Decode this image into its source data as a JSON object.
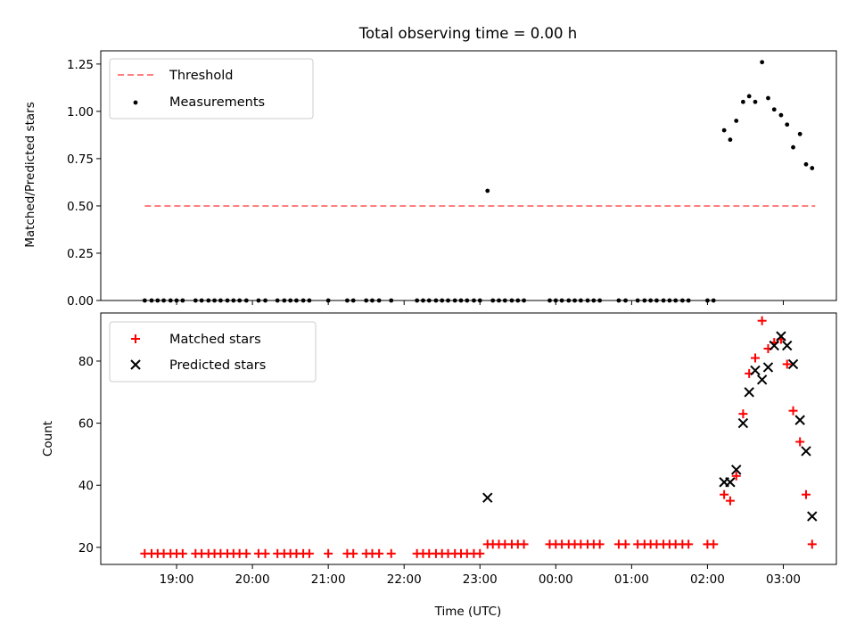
{
  "chart_data": [
    {
      "type": "scatter",
      "title": "Total observing time = 0.00 h",
      "ylabel": "Matched/Predicted stars",
      "xlabel": "",
      "ylim": [
        0,
        1.32
      ],
      "yticks": [
        "0.00",
        "0.25",
        "0.50",
        "0.75",
        "1.00",
        "1.25"
      ],
      "legend": "upper-left",
      "grid": false,
      "series": [
        {
          "name": "Threshold",
          "kind": "line",
          "style": "dashed",
          "color": "#ff7f7f",
          "x": [
            18.58,
            23.1,
            27.42
          ],
          "y": [
            0.5,
            0.5,
            0.5
          ]
        },
        {
          "name": "Measurements",
          "kind": "scatter",
          "marker": "dot",
          "color": "#000000",
          "x": [
            18.58,
            18.67,
            18.75,
            18.83,
            18.92,
            19.0,
            19.08,
            19.25,
            19.33,
            19.42,
            19.5,
            19.58,
            19.67,
            19.75,
            19.83,
            19.92,
            20.08,
            20.17,
            20.33,
            20.42,
            20.5,
            20.58,
            20.67,
            20.75,
            21.0,
            21.25,
            21.33,
            21.5,
            21.58,
            21.67,
            21.83,
            22.17,
            22.25,
            22.33,
            22.42,
            22.5,
            22.58,
            22.67,
            22.75,
            22.83,
            22.92,
            23.0,
            23.1,
            23.17,
            23.25,
            23.33,
            23.42,
            23.5,
            23.58,
            23.92,
            24.0,
            24.08,
            24.17,
            24.25,
            24.33,
            24.42,
            24.5,
            24.58,
            24.83,
            24.92,
            25.08,
            25.17,
            25.25,
            25.33,
            25.42,
            25.5,
            25.58,
            25.67,
            25.75,
            26.0,
            26.08,
            26.22,
            26.3,
            26.38,
            26.47,
            26.55,
            26.63,
            26.72,
            26.8,
            26.88,
            26.97,
            27.05,
            27.13,
            27.22,
            27.3,
            27.38
          ],
          "y": [
            0,
            0,
            0,
            0,
            0,
            0,
            0,
            0,
            0,
            0,
            0,
            0,
            0,
            0,
            0,
            0,
            0,
            0,
            0,
            0,
            0,
            0,
            0,
            0,
            0,
            0,
            0,
            0,
            0,
            0,
            0,
            0,
            0,
            0,
            0,
            0,
            0,
            0,
            0,
            0,
            0,
            0,
            0.58,
            0,
            0,
            0,
            0,
            0,
            0,
            0,
            0,
            0,
            0,
            0,
            0,
            0,
            0,
            0,
            0,
            0,
            0,
            0,
            0,
            0,
            0,
            0,
            0,
            0,
            0,
            0,
            0,
            0.9,
            0.85,
            0.95,
            1.05,
            1.08,
            1.05,
            1.26,
            1.07,
            1.01,
            0.98,
            0.93,
            0.81,
            0.88,
            0.72,
            0.7
          ]
        }
      ]
    },
    {
      "type": "scatter",
      "title": "",
      "ylabel": "Count",
      "xlabel": "Time (UTC)",
      "ylim": [
        14.5,
        95.5
      ],
      "yticks": [
        "20",
        "40",
        "60",
        "80"
      ],
      "xticks": [
        "19:00",
        "20:00",
        "21:00",
        "22:00",
        "23:00",
        "00:00",
        "01:00",
        "02:00",
        "03:00"
      ],
      "legend": "upper-left",
      "grid": false,
      "series": [
        {
          "name": "Matched stars",
          "kind": "scatter",
          "marker": "plus",
          "color": "#ff0000",
          "x": [
            18.58,
            18.67,
            18.75,
            18.83,
            18.92,
            19.0,
            19.08,
            19.25,
            19.33,
            19.42,
            19.5,
            19.58,
            19.67,
            19.75,
            19.83,
            19.92,
            20.08,
            20.17,
            20.33,
            20.42,
            20.5,
            20.58,
            20.67,
            20.75,
            21.0,
            21.25,
            21.33,
            21.5,
            21.58,
            21.67,
            21.83,
            22.17,
            22.25,
            22.33,
            22.42,
            22.5,
            22.58,
            22.67,
            22.75,
            22.83,
            22.92,
            23.0,
            23.1,
            23.17,
            23.25,
            23.33,
            23.42,
            23.5,
            23.58,
            23.92,
            24.0,
            24.08,
            24.17,
            24.25,
            24.33,
            24.42,
            24.5,
            24.58,
            24.83,
            24.92,
            25.08,
            25.17,
            25.25,
            25.33,
            25.42,
            25.5,
            25.58,
            25.67,
            25.75,
            26.0,
            26.08,
            26.22,
            26.3,
            26.38,
            26.47,
            26.55,
            26.63,
            26.72,
            26.8,
            26.88,
            26.97,
            27.05,
            27.13,
            27.22,
            27.3,
            27.38
          ],
          "y": [
            18,
            18,
            18,
            18,
            18,
            18,
            18,
            18,
            18,
            18,
            18,
            18,
            18,
            18,
            18,
            18,
            18,
            18,
            18,
            18,
            18,
            18,
            18,
            18,
            18,
            18,
            18,
            18,
            18,
            18,
            18,
            18,
            18,
            18,
            18,
            18,
            18,
            18,
            18,
            18,
            18,
            18,
            21,
            21,
            21,
            21,
            21,
            21,
            21,
            21,
            21,
            21,
            21,
            21,
            21,
            21,
            21,
            21,
            21,
            21,
            21,
            21,
            21,
            21,
            21,
            21,
            21,
            21,
            21,
            21,
            21,
            37,
            35,
            43,
            63,
            76,
            81,
            93,
            84,
            86,
            87,
            79,
            64,
            54,
            37,
            21
          ]
        },
        {
          "name": "Predicted stars",
          "kind": "scatter",
          "marker": "x",
          "color": "#000000",
          "x": [
            23.1,
            26.22,
            26.3,
            26.38,
            26.47,
            26.55,
            26.63,
            26.72,
            26.8,
            26.88,
            26.97,
            27.05,
            27.13,
            27.22,
            27.3,
            27.38
          ],
          "y": [
            36,
            41,
            41,
            45,
            60,
            70,
            77,
            74,
            78,
            85,
            88,
            85,
            79,
            61,
            51,
            30
          ]
        }
      ]
    }
  ]
}
